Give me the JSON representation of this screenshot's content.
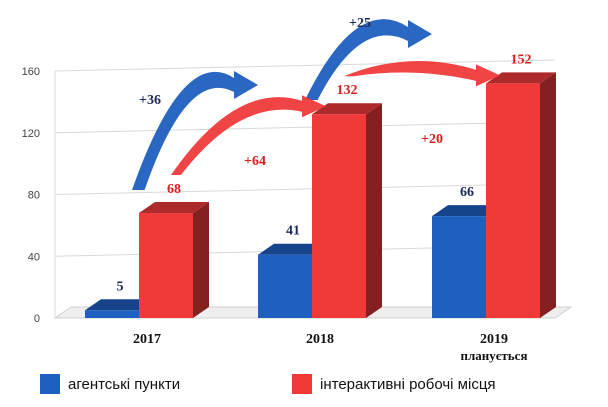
{
  "chart_data": {
    "type": "bar",
    "title": "",
    "xlabel": "",
    "ylabel": "",
    "ylim": [
      0,
      160
    ],
    "yticks": [
      0,
      40,
      80,
      120,
      160
    ],
    "grid": true,
    "legend_position": "bottom",
    "categories": [
      "2017",
      "2018",
      "2019"
    ],
    "category_sublabels": [
      "",
      "",
      "планується"
    ],
    "series": [
      {
        "name": "агентські пункти",
        "values": [
          5,
          41,
          66
        ],
        "color": "#1f5fbf",
        "label_color": "#1a2a5a"
      },
      {
        "name": "інтерактивні робочі місця",
        "values": [
          68,
          132,
          152
        ],
        "color": "#f03a3a",
        "label_color": "#d81e1e"
      }
    ],
    "annotations": [
      {
        "text": "+36",
        "series": 0,
        "from_category": 0,
        "to_category": 1,
        "color": "#1f5fbf"
      },
      {
        "text": "+25",
        "series": 0,
        "from_category": 1,
        "to_category": 2,
        "color": "#1f5fbf"
      },
      {
        "text": "+64",
        "series": 1,
        "from_category": 0,
        "to_category": 1,
        "color": "#f03a3a"
      },
      {
        "text": "+20",
        "series": 1,
        "from_category": 1,
        "to_category": 2,
        "color": "#f03a3a"
      }
    ]
  }
}
